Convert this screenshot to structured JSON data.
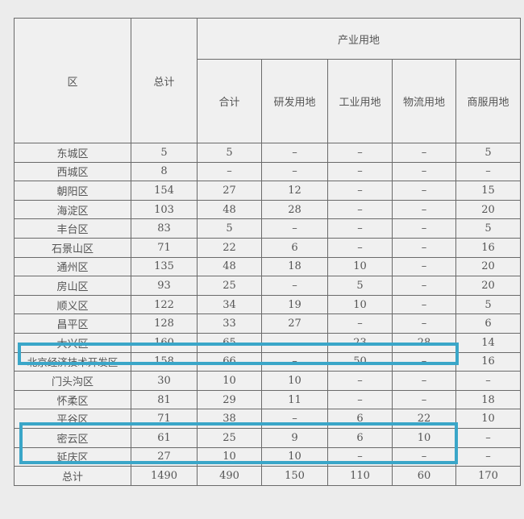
{
  "header": {
    "district": "区",
    "total": "总计",
    "industrial_group": "产业用地",
    "subtotal": "合计",
    "rd_land": "研发用地",
    "industrial_land": "工业用地",
    "logistics_land": "物流用地",
    "commercial_land": "商服用地"
  },
  "rows": [
    [
      "东城区",
      "5",
      "5",
      "–",
      "–",
      "–",
      "5"
    ],
    [
      "西城区",
      "8",
      "–",
      "–",
      "–",
      "–",
      "–"
    ],
    [
      "朝阳区",
      "154",
      "27",
      "12",
      "–",
      "–",
      "15"
    ],
    [
      "海淀区",
      "103",
      "48",
      "28",
      "–",
      "–",
      "20"
    ],
    [
      "丰台区",
      "83",
      "5",
      "–",
      "–",
      "–",
      "5"
    ],
    [
      "石景山区",
      "71",
      "22",
      "6",
      "–",
      "–",
      "16"
    ],
    [
      "通州区",
      "135",
      "48",
      "18",
      "10",
      "–",
      "20"
    ],
    [
      "房山区",
      "93",
      "25",
      "–",
      "5",
      "–",
      "20"
    ],
    [
      "顺义区",
      "122",
      "34",
      "19",
      "10",
      "–",
      "5"
    ],
    [
      "昌平区",
      "128",
      "33",
      "27",
      "–",
      "–",
      "6"
    ],
    [
      "大兴区",
      "160",
      "65",
      "–",
      "23",
      "28",
      "14"
    ],
    [
      "北京经济技术开发区",
      "158",
      "66",
      "–",
      "50",
      "–",
      "16"
    ],
    [
      "门头沟区",
      "30",
      "10",
      "10",
      "–",
      "–",
      "–"
    ],
    [
      "怀柔区",
      "81",
      "29",
      "11",
      "–",
      "–",
      "18"
    ],
    [
      "平谷区",
      "71",
      "38",
      "–",
      "6",
      "22",
      "10"
    ],
    [
      "密云区",
      "61",
      "25",
      "9",
      "6",
      "10",
      "–"
    ],
    [
      "延庆区",
      "27",
      "10",
      "10",
      "–",
      "–",
      "–"
    ],
    [
      "总计",
      "1490",
      "490",
      "150",
      "110",
      "60",
      "170"
    ]
  ],
  "highlight_color": "#3aa6c8",
  "highlighted_rows": [
    "大兴区",
    "平谷区",
    "密云区"
  ]
}
